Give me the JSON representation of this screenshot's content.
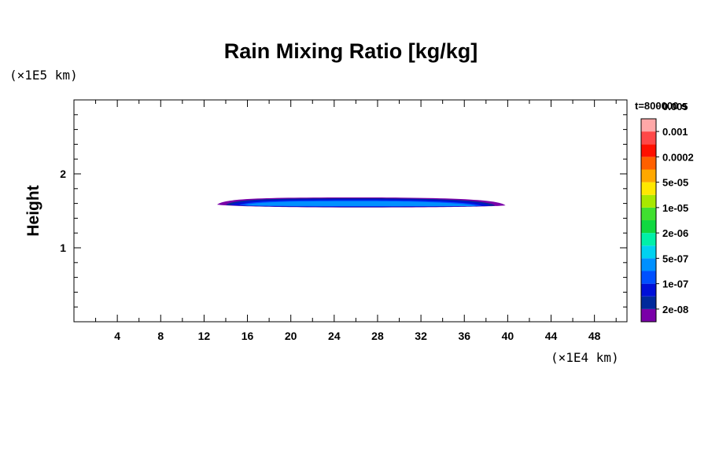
{
  "chart_data": {
    "type": "contour",
    "title": "Rain Mixing Ratio [kg/kg]",
    "ylabel": "Height",
    "x_unit": "(×1E4 km)",
    "y_unit": "(×1E5 km)",
    "time_label": "t=800000 s",
    "xlim": [
      0,
      51
    ],
    "ylim": [
      0,
      3
    ],
    "x_ticks": [
      4,
      8,
      12,
      16,
      20,
      24,
      28,
      32,
      36,
      40,
      44,
      48
    ],
    "y_ticks": [
      1,
      2
    ],
    "x_minor_step": 2,
    "y_minor_step": 0.2,
    "field_extent": {
      "x": [
        13.2,
        39.8
      ],
      "y": [
        1.54,
        1.67
      ]
    },
    "colorbar": {
      "colors": [
        "#7a00a8",
        "#002a9c",
        "#0010d8",
        "#0050ff",
        "#0090ff",
        "#00d2f0",
        "#00f0a8",
        "#10d840",
        "#40e030",
        "#a8e800",
        "#ffe800",
        "#ffa800",
        "#ff6000",
        "#ff1000",
        "#ff4848",
        "#ffa8a8"
      ],
      "labels": [
        "2e-08",
        "1e-07",
        "5e-07",
        "2e-06",
        "1e-05",
        "5e-05",
        "0.0002",
        "0.001",
        "0.005"
      ]
    }
  }
}
